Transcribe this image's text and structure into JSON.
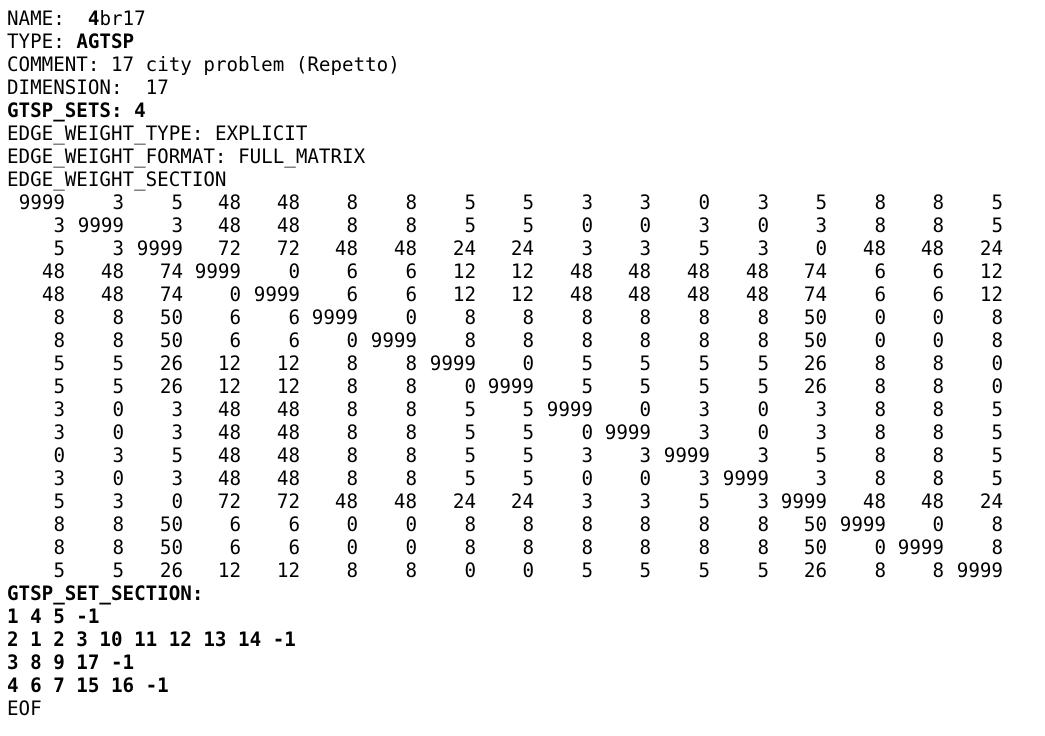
{
  "header": [
    {
      "key": "name",
      "label": "NAME:",
      "value": "4br17",
      "value_bold_prefix": "4",
      "value_rest": "br17"
    },
    {
      "key": "type",
      "label": "TYPE:",
      "value": "AGTSP"
    },
    {
      "key": "comment",
      "label": "COMMENT:",
      "value": "17 city problem (Repetto)"
    },
    {
      "key": "dimension",
      "label": "DIMENSION:",
      "value": "17"
    },
    {
      "key": "gtsp_sets",
      "label": "GTSP_SETS:",
      "value": "4"
    },
    {
      "key": "edge_weight_type",
      "label": "EDGE_WEIGHT_TYPE:",
      "value": "EXPLICIT"
    },
    {
      "key": "edge_weight_format",
      "label": "EDGE_WEIGHT_FORMAT:",
      "value": "FULL_MATRIX"
    },
    {
      "key": "edge_weight_section",
      "label": "EDGE_WEIGHT_SECTION",
      "value": ""
    }
  ],
  "matrix": [
    [
      "9999",
      "3",
      "5",
      "48",
      "48",
      "8",
      "8",
      "5",
      "5",
      "3",
      "3",
      "0",
      "3",
      "5",
      "8",
      "8",
      "5"
    ],
    [
      "3",
      "9999",
      "3",
      "48",
      "48",
      "8",
      "8",
      "5",
      "5",
      "0",
      "0",
      "3",
      "0",
      "3",
      "8",
      "8",
      "5"
    ],
    [
      "5",
      "3",
      "9999",
      "72",
      "72",
      "48",
      "48",
      "24",
      "24",
      "3",
      "3",
      "5",
      "3",
      "0",
      "48",
      "48",
      "24"
    ],
    [
      "48",
      "48",
      "74",
      "9999",
      "0",
      "6",
      "6",
      "12",
      "12",
      "48",
      "48",
      "48",
      "48",
      "74",
      "6",
      "6",
      "12"
    ],
    [
      "48",
      "48",
      "74",
      "0",
      "9999",
      "6",
      "6",
      "12",
      "12",
      "48",
      "48",
      "48",
      "48",
      "74",
      "6",
      "6",
      "12"
    ],
    [
      "8",
      "8",
      "50",
      "6",
      "6",
      "9999",
      "0",
      "8",
      "8",
      "8",
      "8",
      "8",
      "8",
      "50",
      "0",
      "0",
      "8"
    ],
    [
      "8",
      "8",
      "50",
      "6",
      "6",
      "0",
      "9999",
      "8",
      "8",
      "8",
      "8",
      "8",
      "8",
      "50",
      "0",
      "0",
      "8"
    ],
    [
      "5",
      "5",
      "26",
      "12",
      "12",
      "8",
      "8",
      "9999",
      "0",
      "5",
      "5",
      "5",
      "5",
      "26",
      "8",
      "8",
      "0"
    ],
    [
      "5",
      "5",
      "26",
      "12",
      "12",
      "8",
      "8",
      "0",
      "9999",
      "5",
      "5",
      "5",
      "5",
      "26",
      "8",
      "8",
      "0"
    ],
    [
      "3",
      "0",
      "3",
      "48",
      "48",
      "8",
      "8",
      "5",
      "5",
      "9999",
      "0",
      "3",
      "0",
      "3",
      "8",
      "8",
      "5"
    ],
    [
      "3",
      "0",
      "3",
      "48",
      "48",
      "8",
      "8",
      "5",
      "5",
      "0",
      "9999",
      "3",
      "0",
      "3",
      "8",
      "8",
      "5"
    ],
    [
      "0",
      "3",
      "5",
      "48",
      "48",
      "8",
      "8",
      "5",
      "5",
      "3",
      "3",
      "9999",
      "3",
      "5",
      "8",
      "8",
      "5"
    ],
    [
      "3",
      "0",
      "3",
      "48",
      "48",
      "8",
      "8",
      "5",
      "5",
      "0",
      "0",
      "3",
      "9999",
      "3",
      "8",
      "8",
      "5"
    ],
    [
      "5",
      "3",
      "0",
      "72",
      "72",
      "48",
      "48",
      "24",
      "24",
      "3",
      "3",
      "5",
      "3",
      "9999",
      "48",
      "48",
      "24"
    ],
    [
      "8",
      "8",
      "50",
      "6",
      "6",
      "0",
      "0",
      "8",
      "8",
      "8",
      "8",
      "8",
      "8",
      "50",
      "9999",
      "0",
      "8"
    ],
    [
      "8",
      "8",
      "50",
      "6",
      "6",
      "0",
      "0",
      "8",
      "8",
      "8",
      "8",
      "8",
      "8",
      "50",
      "0",
      "9999",
      "8"
    ],
    [
      "5",
      "5",
      "26",
      "12",
      "12",
      "8",
      "8",
      "0",
      "0",
      "5",
      "5",
      "5",
      "5",
      "26",
      "8",
      "8",
      "9999"
    ]
  ],
  "set_section_label": "GTSP_SET_SECTION:",
  "sets": [
    "1 4 5 -1",
    "2 1 2 3 10 11 12 13 14 -1",
    "3 8 9 17 -1",
    "4 6 7 15 16 -1"
  ],
  "eof": "EOF"
}
